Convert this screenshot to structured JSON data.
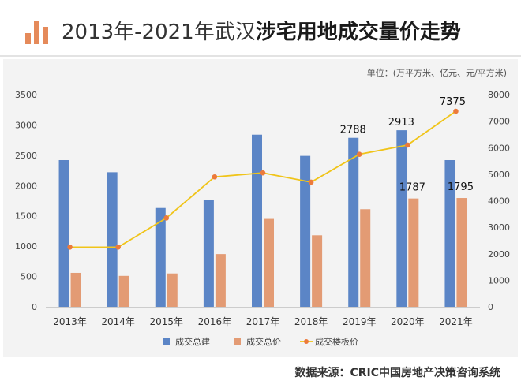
{
  "header": {
    "title_plain": "2013年-2021年武汉",
    "title_bold": "涉宅用地成交量价走势"
  },
  "unit_label": "单位：(万平方米、亿元、元/平方米)",
  "source": "数据来源：CRIC中国房地产决策咨询系统",
  "colors": {
    "bar_area": "#5b85c6",
    "bar_price": "#e39b74",
    "line": "#f0c419",
    "marker": "#ec7a3b",
    "brand": "#e58a5a"
  },
  "chart_data": {
    "type": "bar",
    "title": "2013年-2021年武汉涉宅用地成交量价走势",
    "categories": [
      "2013年",
      "2014年",
      "2015年",
      "2016年",
      "2017年",
      "2018年",
      "2019年",
      "2020年",
      "2021年"
    ],
    "series": [
      {
        "name": "成交总建",
        "axis": "left",
        "values": [
          2420,
          2220,
          1630,
          1760,
          2840,
          2490,
          2788,
          2913,
          2420
        ]
      },
      {
        "name": "成交总价",
        "axis": "left",
        "values": [
          560,
          510,
          550,
          870,
          1450,
          1180,
          1610,
          1787,
          1795
        ]
      },
      {
        "name": "成交楼板价",
        "axis": "right",
        "type": "line",
        "values": [
          2250,
          2250,
          3350,
          4900,
          5050,
          4700,
          5750,
          6100,
          7375
        ]
      }
    ],
    "data_labels": [
      {
        "series": 0,
        "index": 6,
        "text": "2788"
      },
      {
        "series": 0,
        "index": 7,
        "text": "2913"
      },
      {
        "series": 1,
        "index": 7,
        "text": "1787"
      },
      {
        "series": 1,
        "index": 8,
        "text": "1795"
      },
      {
        "series": 2,
        "index": 8,
        "text": "7375"
      }
    ],
    "y_left": {
      "min": 0,
      "max": 3500,
      "ticks": [
        0,
        500,
        1000,
        1500,
        2000,
        2500,
        3000,
        3500
      ]
    },
    "y_right": {
      "min": 0,
      "max": 8000,
      "ticks": [
        0,
        1000,
        2000,
        3000,
        4000,
        5000,
        6000,
        7000,
        8000
      ]
    },
    "legend": [
      "成交总建",
      "成交总价",
      "成交楼板价"
    ],
    "legend_position": "bottom"
  }
}
